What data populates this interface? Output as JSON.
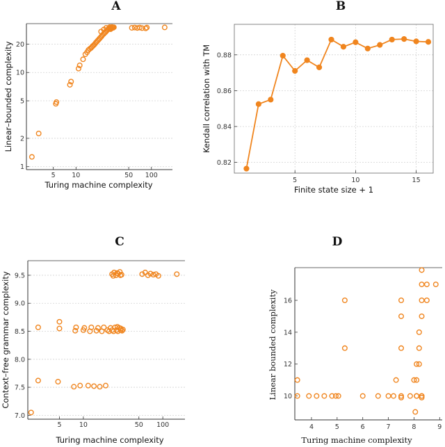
{
  "chart_data": [
    {
      "panel": "A",
      "type": "scatter",
      "xlabel": "Turing machine complexity",
      "ylabel": "Linear–bounded complexity",
      "xscale": "log",
      "yscale": "log",
      "xlim": [
        2.2,
        190
      ],
      "ylim": [
        0.93,
        33
      ],
      "xticks": [
        5,
        10,
        50,
        100
      ],
      "xtick_labels": [
        "5",
        "10",
        "50",
        "100"
      ],
      "yticks": [
        1,
        2,
        5,
        10,
        20
      ],
      "ytick_labels": [
        "1",
        "2",
        "5",
        "10",
        "20"
      ],
      "grid": "horizontal dotted",
      "marker": "open circle",
      "x": [
        2.6,
        3.2,
        5.4,
        5.5,
        8.3,
        8.6,
        10.8,
        11.2,
        12.4,
        13.3,
        14.0,
        14.6,
        15.2,
        15.8,
        16.3,
        16.8,
        17.3,
        17.8,
        18.3,
        18.8,
        19.4,
        20.0,
        20.6,
        21.2,
        21.8,
        22.4,
        23.2,
        24.0,
        24.8,
        25.6,
        26.5,
        27.4,
        28.3,
        21.5,
        23.4,
        25.2,
        27.1,
        28.7,
        29.6,
        30.5,
        31.3,
        28.0,
        29.0,
        30.0,
        31.0,
        31.8,
        55,
        60,
        65,
        70,
        75,
        84,
        87,
        150
      ],
      "y": [
        1.27,
        2.25,
        4.65,
        4.85,
        7.4,
        8.0,
        11.0,
        11.9,
        13.8,
        15.6,
        16.4,
        17.3,
        17.8,
        18.2,
        18.7,
        19.2,
        19.6,
        20.1,
        20.7,
        21.2,
        21.8,
        22.4,
        23.0,
        23.6,
        24.2,
        24.9,
        25.6,
        26.3,
        27.0,
        27.8,
        28.6,
        29.2,
        29.6,
        27.2,
        28.6,
        29.8,
        29.3,
        28.8,
        29.4,
        29.8,
        30.0,
        30.3,
        29.9,
        30.4,
        29.8,
        30.2,
        29.8,
        30.0,
        29.7,
        30.0,
        29.6,
        29.4,
        30.0,
        30.1
      ]
    },
    {
      "panel": "B",
      "type": "line",
      "xlabel": "Finite state size + 1",
      "ylabel": "Kendall correlation with TM",
      "xlim": [
        0,
        16.4
      ],
      "ylim": [
        0.814,
        0.897
      ],
      "xticks": [
        5,
        10,
        15
      ],
      "xtick_labels": [
        "5",
        "10",
        "15"
      ],
      "yticks": [
        0.82,
        0.84,
        0.86,
        0.88
      ],
      "ytick_labels": [
        "0.82",
        "0.84",
        "0.86",
        "0.88"
      ],
      "grid": "both",
      "marker": "filled circle",
      "x": [
        1,
        2,
        3,
        4,
        5,
        6,
        7,
        8,
        9,
        10,
        11,
        12,
        13,
        14,
        15,
        16
      ],
      "y": [
        0.8165,
        0.8525,
        0.855,
        0.8795,
        0.871,
        0.877,
        0.873,
        0.8885,
        0.8845,
        0.887,
        0.8835,
        0.8855,
        0.8885,
        0.8888,
        0.8875,
        0.8872
      ]
    },
    {
      "panel": "C",
      "type": "scatter",
      "xlabel": "Turing machine complexity",
      "ylabel": "Context–free grammar complexity",
      "xscale": "log",
      "xlim": [
        2.0,
        190
      ],
      "ylim": [
        6.93,
        9.76
      ],
      "xticks": [
        5,
        10,
        50,
        100
      ],
      "xtick_labels": [
        "5",
        "10",
        "50",
        "100"
      ],
      "yticks": [
        7.0,
        7.5,
        8.0,
        8.5,
        9.0,
        9.5
      ],
      "ytick_labels": [
        "7.0",
        "7.5",
        "8.0",
        "8.5",
        "9.0",
        "9.5"
      ],
      "grid": "horizontal dotted",
      "marker": "open circle",
      "x": [
        2.2,
        2.7,
        2.7,
        4.8,
        5.0,
        5.0,
        7.6,
        7.9,
        8.1,
        9.1,
        10.0,
        10.3,
        11.5,
        12.1,
        12.6,
        13.6,
        14.6,
        15.3,
        16.1,
        17.1,
        18.1,
        19.1,
        20.1,
        21.1,
        22.0,
        23.0,
        24.0,
        25.1,
        26.1,
        27.2,
        28.3,
        29.5,
        30.7,
        31.5,
        26.8,
        29.6,
        23.0,
        24.4,
        25.8,
        27.3,
        28.8,
        30.3,
        23.8,
        26.6,
        29.3,
        55,
        60,
        65,
        70,
        76,
        82,
        88,
        150
      ],
      "y": [
        7.05,
        7.62,
        8.57,
        7.6,
        8.67,
        8.55,
        7.51,
        8.51,
        8.57,
        7.53,
        8.52,
        8.56,
        7.53,
        8.5,
        8.57,
        7.52,
        8.51,
        8.56,
        7.51,
        8.5,
        8.57,
        7.53,
        8.52,
        8.5,
        8.56,
        8.52,
        8.5,
        8.57,
        8.52,
        8.5,
        8.56,
        8.52,
        8.51,
        8.53,
        8.58,
        8.55,
        9.52,
        9.55,
        9.5,
        9.53,
        9.56,
        9.51,
        9.49,
        9.54,
        9.5,
        9.52,
        9.55,
        9.5,
        9.53,
        9.51,
        9.52,
        9.49,
        9.52
      ]
    },
    {
      "panel": "D",
      "type": "scatter",
      "xlabel": "Turing machine complexity",
      "ylabel": "Linear bounded complexity",
      "xlim": [
        3.35,
        9.1
      ],
      "ylim": [
        8.5,
        18.05
      ],
      "xticks": [
        4,
        5,
        6,
        7,
        8,
        9
      ],
      "xtick_labels": [
        "4",
        "5",
        "6",
        "7",
        "8",
        "9"
      ],
      "yticks": [
        10,
        12,
        14,
        16
      ],
      "ytick_labels": [
        "10",
        "12",
        "14",
        "16"
      ],
      "grid": "none",
      "marker": "open circle",
      "x": [
        3.45,
        3.45,
        3.9,
        4.2,
        4.5,
        4.8,
        4.95,
        5.05,
        5.3,
        5.3,
        6.0,
        6.6,
        7.0,
        7.2,
        7.5,
        7.5,
        7.5,
        7.5,
        7.5,
        7.3,
        7.85,
        8.0,
        8.1,
        8.1,
        8.1,
        8.1,
        8.2,
        8.2,
        8.2,
        8.3,
        8.3,
        8.3,
        8.3,
        8.3,
        8.3,
        8.3,
        8.5,
        8.5,
        8.85,
        8.05
      ],
      "y": [
        11,
        10,
        10,
        10,
        10,
        10,
        10,
        10,
        16,
        13,
        10,
        10,
        10,
        10,
        16,
        15,
        13,
        10,
        9.9,
        11,
        10,
        11,
        12,
        10,
        11,
        10,
        14,
        13,
        12,
        15,
        16,
        17,
        17.9,
        10,
        10,
        9.9,
        17,
        16,
        17,
        9
      ]
    }
  ]
}
